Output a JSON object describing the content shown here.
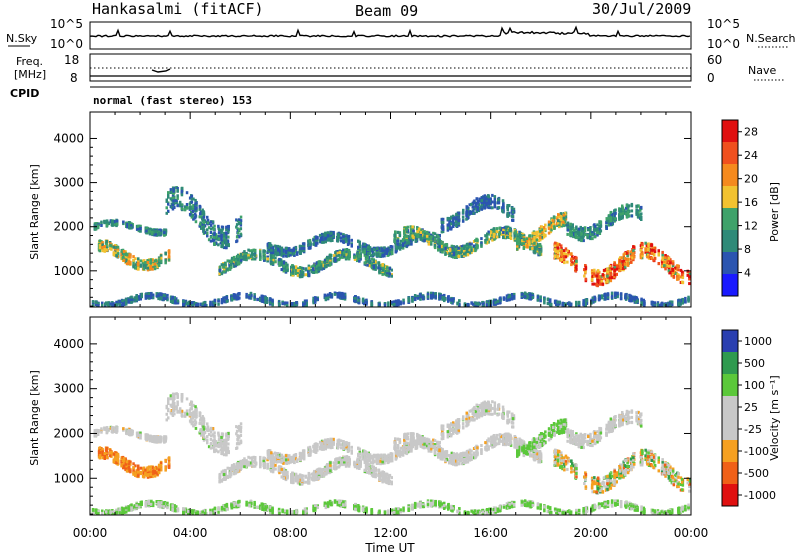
{
  "header": {
    "station": "Hankasalmi (fitACF)",
    "beam": "Beam 09",
    "date": "30/Jul/2009"
  },
  "noise_panel": {
    "left_label": "N.Sky",
    "left_ticks": [
      "10^5",
      "10^0"
    ],
    "right_label": "N.Search",
    "right_ticks": [
      "10^5",
      "10^0"
    ]
  },
  "freq_panel": {
    "left_label_line1": "Freq.",
    "left_label_line2": "[MHz]",
    "left_ticks": [
      "18",
      "8"
    ],
    "right_label": "Nave",
    "right_ticks": [
      "60",
      "0"
    ]
  },
  "cpid": {
    "label": "CPID",
    "mode_text": "normal (fast stereo) 153"
  },
  "colors": {
    "power_scale": [
      "#1a1aff",
      "#2b55b0",
      "#2f8a78",
      "#3fa26a",
      "#f2c230",
      "#f58a1e",
      "#f0501e",
      "#e01010"
    ],
    "velocity_scale": [
      "#e01010",
      "#f06018",
      "#f5a020",
      "#c8c8c8",
      "#c8c8c8",
      "#5bc83a",
      "#2f9a4f",
      "#2a3fb0"
    ]
  },
  "chart_data": [
    {
      "type": "heatmap",
      "name": "power",
      "ylabel": "Slant Range [km]",
      "ylim": [
        180,
        4600
      ],
      "yticks": [
        1000,
        2000,
        3000,
        4000
      ],
      "xlim_hours": [
        0,
        24
      ],
      "colorbar": {
        "label": "Power [dB]",
        "ticks": [
          "4",
          "8",
          "12",
          "16",
          "20",
          "24",
          "28"
        ],
        "range": [
          0,
          30
        ]
      }
    },
    {
      "type": "heatmap",
      "name": "velocity",
      "ylabel": "Slant Range [km]",
      "ylim": [
        180,
        4600
      ],
      "yticks": [
        1000,
        2000,
        3000,
        4000
      ],
      "xlim_hours": [
        0,
        24
      ],
      "colorbar": {
        "label": "Velocity [m s⁻¹]",
        "ticks": [
          "1000",
          "500",
          "100",
          "25",
          "-25",
          "-100",
          "-500",
          "-1000"
        ]
      }
    }
  ],
  "xaxis": {
    "label": "Time UT",
    "ticks": [
      "00:00",
      "04:00",
      "08:00",
      "12:00",
      "16:00",
      "20:00",
      "00:00"
    ]
  }
}
